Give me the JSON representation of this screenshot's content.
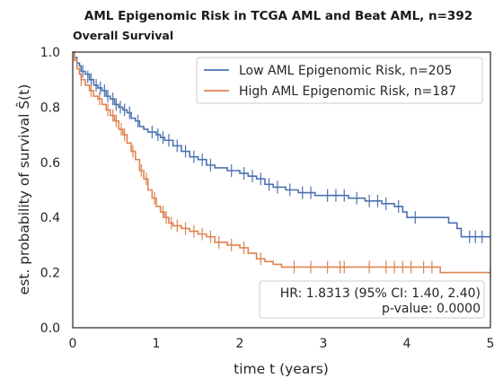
{
  "chart_data": {
    "type": "line",
    "title": "AML Epigenomic Risk in TCGA AML and Beat AML, n=392",
    "subtitle": "Overall Survival",
    "xlabel": "time t (years)",
    "ylabel": "est. probability of survival Ŝ(t)",
    "xlim": [
      0,
      5
    ],
    "ylim": [
      0,
      1
    ],
    "x_ticks": [
      "0",
      "1",
      "2",
      "3",
      "4",
      "5"
    ],
    "y_ticks": [
      "0.0",
      "0.2",
      "0.4",
      "0.6",
      "0.8",
      "1.0"
    ],
    "grid": false,
    "legend_position": "top-right",
    "series": [
      {
        "name": "Low AML Epigenomic Risk, n=205",
        "color": "#4c72b0",
        "steps": [
          [
            0,
            1.0
          ],
          [
            0.02,
            0.98
          ],
          [
            0.05,
            0.96
          ],
          [
            0.08,
            0.95
          ],
          [
            0.1,
            0.93
          ],
          [
            0.15,
            0.92
          ],
          [
            0.2,
            0.9
          ],
          [
            0.25,
            0.88
          ],
          [
            0.3,
            0.87
          ],
          [
            0.35,
            0.86
          ],
          [
            0.4,
            0.84
          ],
          [
            0.45,
            0.83
          ],
          [
            0.5,
            0.81
          ],
          [
            0.55,
            0.8
          ],
          [
            0.6,
            0.79
          ],
          [
            0.65,
            0.78
          ],
          [
            0.7,
            0.76
          ],
          [
            0.75,
            0.75
          ],
          [
            0.8,
            0.73
          ],
          [
            0.85,
            0.72
          ],
          [
            0.9,
            0.71
          ],
          [
            1.0,
            0.7
          ],
          [
            1.05,
            0.69
          ],
          [
            1.1,
            0.68
          ],
          [
            1.2,
            0.66
          ],
          [
            1.3,
            0.64
          ],
          [
            1.4,
            0.62
          ],
          [
            1.5,
            0.61
          ],
          [
            1.6,
            0.59
          ],
          [
            1.7,
            0.58
          ],
          [
            1.85,
            0.57
          ],
          [
            2.0,
            0.56
          ],
          [
            2.1,
            0.55
          ],
          [
            2.2,
            0.54
          ],
          [
            2.3,
            0.52
          ],
          [
            2.4,
            0.51
          ],
          [
            2.55,
            0.5
          ],
          [
            2.7,
            0.49
          ],
          [
            2.9,
            0.48
          ],
          [
            3.3,
            0.47
          ],
          [
            3.5,
            0.46
          ],
          [
            3.7,
            0.45
          ],
          [
            3.85,
            0.44
          ],
          [
            3.95,
            0.42
          ],
          [
            4.0,
            0.4
          ],
          [
            4.5,
            0.38
          ],
          [
            4.6,
            0.36
          ],
          [
            4.65,
            0.33
          ],
          [
            5.0,
            0.33
          ]
        ],
        "censors": [
          [
            0.05,
            0.96
          ],
          [
            0.12,
            0.93
          ],
          [
            0.18,
            0.91
          ],
          [
            0.22,
            0.9
          ],
          [
            0.28,
            0.88
          ],
          [
            0.33,
            0.87
          ],
          [
            0.38,
            0.86
          ],
          [
            0.42,
            0.84
          ],
          [
            0.48,
            0.83
          ],
          [
            0.52,
            0.81
          ],
          [
            0.57,
            0.8
          ],
          [
            0.62,
            0.79
          ],
          [
            0.68,
            0.78
          ],
          [
            0.78,
            0.75
          ],
          [
            0.95,
            0.71
          ],
          [
            1.02,
            0.7
          ],
          [
            1.08,
            0.69
          ],
          [
            1.15,
            0.68
          ],
          [
            1.25,
            0.66
          ],
          [
            1.35,
            0.64
          ],
          [
            1.45,
            0.62
          ],
          [
            1.55,
            0.61
          ],
          [
            1.65,
            0.59
          ],
          [
            1.9,
            0.57
          ],
          [
            2.05,
            0.56
          ],
          [
            2.15,
            0.55
          ],
          [
            2.25,
            0.54
          ],
          [
            2.35,
            0.52
          ],
          [
            2.45,
            0.51
          ],
          [
            2.6,
            0.5
          ],
          [
            2.75,
            0.49
          ],
          [
            2.85,
            0.49
          ],
          [
            3.05,
            0.48
          ],
          [
            3.15,
            0.48
          ],
          [
            3.25,
            0.48
          ],
          [
            3.4,
            0.47
          ],
          [
            3.55,
            0.46
          ],
          [
            3.65,
            0.46
          ],
          [
            3.75,
            0.45
          ],
          [
            3.9,
            0.44
          ],
          [
            4.1,
            0.4
          ],
          [
            4.75,
            0.33
          ],
          [
            4.82,
            0.33
          ],
          [
            4.9,
            0.33
          ]
        ]
      },
      {
        "name": "High AML Epigenomic Risk, n=187",
        "color": "#dd8452",
        "steps": [
          [
            0,
            1.0
          ],
          [
            0.02,
            0.97
          ],
          [
            0.05,
            0.94
          ],
          [
            0.08,
            0.92
          ],
          [
            0.1,
            0.9
          ],
          [
            0.15,
            0.88
          ],
          [
            0.2,
            0.86
          ],
          [
            0.25,
            0.84
          ],
          [
            0.3,
            0.83
          ],
          [
            0.35,
            0.81
          ],
          [
            0.4,
            0.79
          ],
          [
            0.45,
            0.77
          ],
          [
            0.5,
            0.75
          ],
          [
            0.55,
            0.72
          ],
          [
            0.6,
            0.7
          ],
          [
            0.65,
            0.67
          ],
          [
            0.7,
            0.64
          ],
          [
            0.75,
            0.61
          ],
          [
            0.8,
            0.57
          ],
          [
            0.85,
            0.54
          ],
          [
            0.9,
            0.5
          ],
          [
            0.95,
            0.47
          ],
          [
            1.0,
            0.44
          ],
          [
            1.05,
            0.42
          ],
          [
            1.1,
            0.4
          ],
          [
            1.15,
            0.38
          ],
          [
            1.2,
            0.37
          ],
          [
            1.3,
            0.36
          ],
          [
            1.4,
            0.35
          ],
          [
            1.5,
            0.34
          ],
          [
            1.6,
            0.33
          ],
          [
            1.7,
            0.31
          ],
          [
            1.85,
            0.3
          ],
          [
            2.0,
            0.29
          ],
          [
            2.1,
            0.27
          ],
          [
            2.2,
            0.25
          ],
          [
            2.3,
            0.24
          ],
          [
            2.4,
            0.23
          ],
          [
            2.5,
            0.22
          ],
          [
            4.4,
            0.22
          ],
          [
            4.4,
            0.2
          ],
          [
            5.0,
            0.2
          ]
        ],
        "censors": [
          [
            0.1,
            0.9
          ],
          [
            0.22,
            0.86
          ],
          [
            0.32,
            0.83
          ],
          [
            0.42,
            0.79
          ],
          [
            0.48,
            0.77
          ],
          [
            0.52,
            0.75
          ],
          [
            0.58,
            0.72
          ],
          [
            0.62,
            0.7
          ],
          [
            0.72,
            0.64
          ],
          [
            0.82,
            0.57
          ],
          [
            0.88,
            0.54
          ],
          [
            0.98,
            0.47
          ],
          [
            1.08,
            0.42
          ],
          [
            1.12,
            0.4
          ],
          [
            1.18,
            0.38
          ],
          [
            1.25,
            0.37
          ],
          [
            1.35,
            0.36
          ],
          [
            1.45,
            0.35
          ],
          [
            1.55,
            0.34
          ],
          [
            1.65,
            0.33
          ],
          [
            1.75,
            0.31
          ],
          [
            1.9,
            0.3
          ],
          [
            2.05,
            0.29
          ],
          [
            2.25,
            0.25
          ],
          [
            2.65,
            0.22
          ],
          [
            2.85,
            0.22
          ],
          [
            3.05,
            0.22
          ],
          [
            3.2,
            0.22
          ],
          [
            3.25,
            0.22
          ],
          [
            3.55,
            0.22
          ],
          [
            3.75,
            0.22
          ],
          [
            3.85,
            0.22
          ],
          [
            3.95,
            0.22
          ],
          [
            4.05,
            0.22
          ],
          [
            4.2,
            0.22
          ],
          [
            4.3,
            0.22
          ],
          [
            5.0,
            0.2
          ]
        ]
      }
    ],
    "stats": {
      "hr": "HR: 1.8313 (95% CI: 1.40, 2.40)",
      "p": "p-value: 0.0000"
    }
  }
}
